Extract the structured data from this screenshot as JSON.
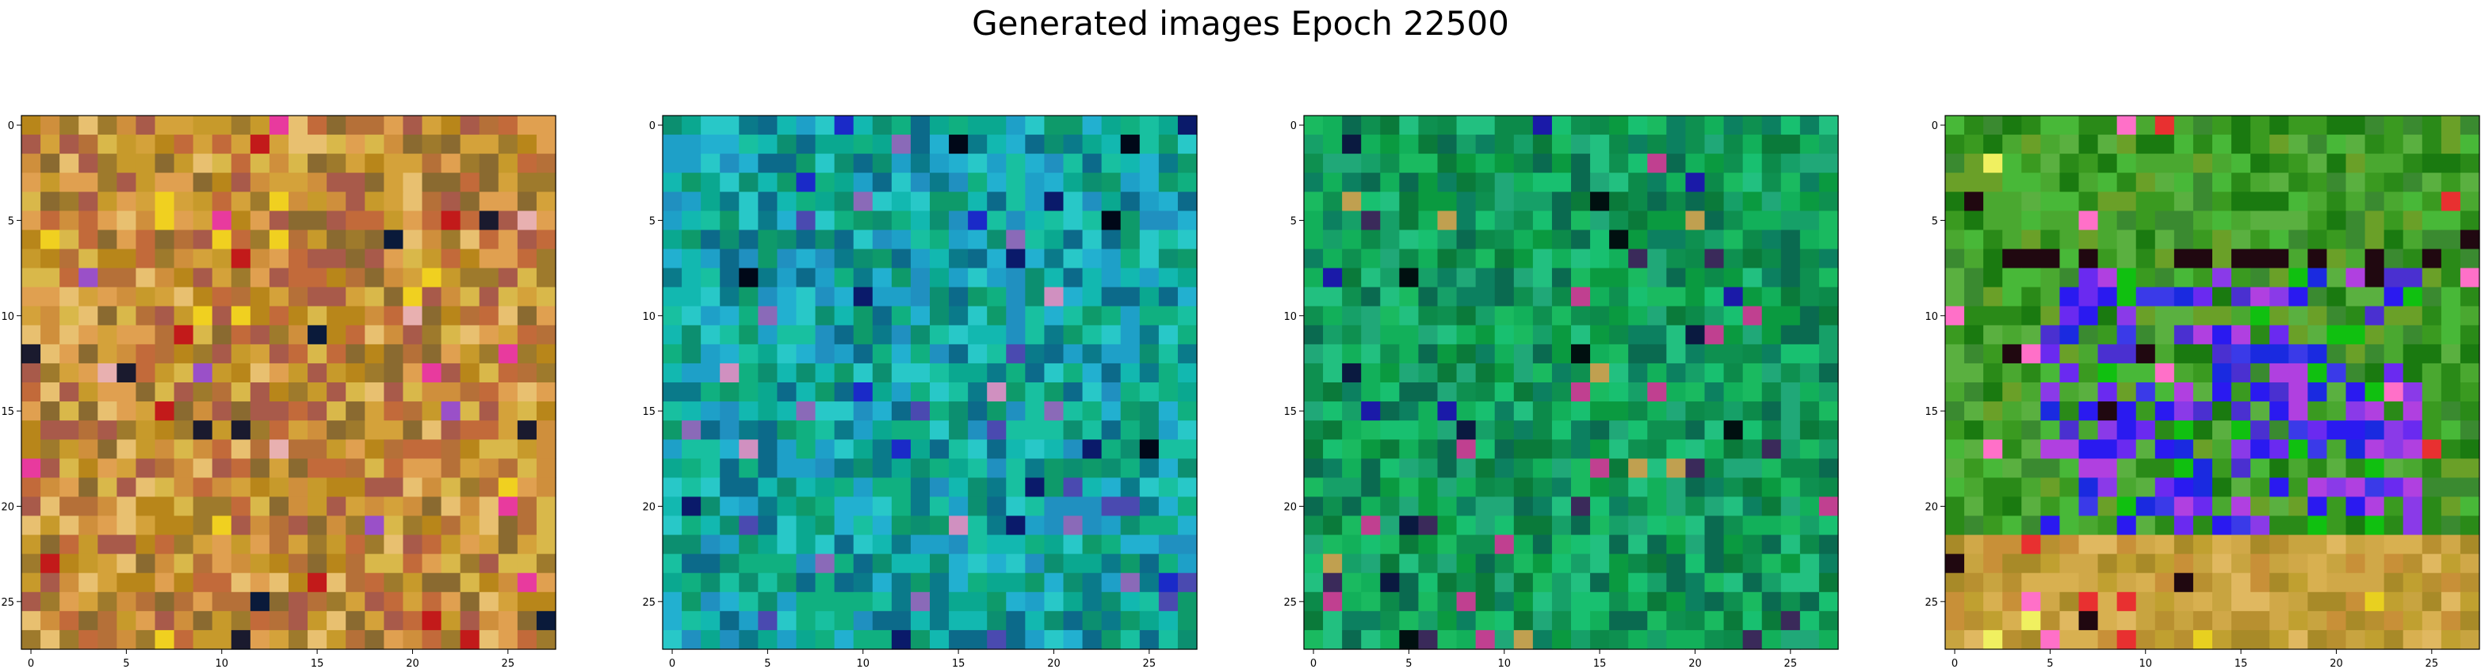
{
  "chart_data": {
    "type": "heatmap",
    "title": "Generated images Epoch 22500",
    "grid_size": [
      28,
      28
    ],
    "xlim": [
      -0.5,
      27.5
    ],
    "ylim": [
      27.5,
      -0.5
    ],
    "xticks": [
      0,
      5,
      10,
      15,
      20,
      25
    ],
    "yticks": [
      0,
      5,
      10,
      15,
      20,
      25
    ],
    "xticklabels": [
      "0",
      "5",
      "10",
      "15",
      "20",
      "25"
    ],
    "yticklabels": [
      "0",
      "5",
      "10",
      "15",
      "20",
      "25"
    ],
    "grid": false,
    "panels": [
      {
        "name": "image-1",
        "dominant_palette": "amber-orange",
        "colors": [
          "#b8861a",
          "#c79a2b",
          "#d4a23a",
          "#e0a050",
          "#c26a3a",
          "#9e7a2c",
          "#e8c070",
          "#a85a4a",
          "#d9b84a",
          "#b57038",
          "#cf8f3c",
          "#8a6a30"
        ],
        "accents": [
          "#1a1a2e",
          "#c21a1a",
          "#e83a9e",
          "#f0d020",
          "#e8b0b0",
          "#9a50c8",
          "#0a1a3a"
        ]
      },
      {
        "name": "image-2",
        "dominant_palette": "teal-cyan",
        "colors": [
          "#0aa890",
          "#12b8b0",
          "#1ea0c8",
          "#0c8f70",
          "#18c0a0",
          "#0a7a8a",
          "#28c8c8",
          "#0e9a6a",
          "#2090c0",
          "#10b080",
          "#0c6a8a",
          "#22b0d0"
        ],
        "accents": [
          "#0a1a6a",
          "#000818",
          "#4a4ab0",
          "#1a2ac8",
          "#d090c0",
          "#8a6ab8"
        ]
      },
      {
        "name": "image-3",
        "dominant_palette": "green",
        "colors": [
          "#0a9a40",
          "#12b05a",
          "#0c8a4a",
          "#18c070",
          "#0a7a3a",
          "#20a878",
          "#0e9050",
          "#1aba60",
          "#0a6a50",
          "#16a068",
          "#0c8060",
          "#22c080"
        ],
        "accents": [
          "#001010",
          "#0a1a40",
          "#1a1aa8",
          "#c0a050",
          "#c04090",
          "#3a2a5a"
        ]
      },
      {
        "name": "image-4",
        "dominant_palette": "green-purple-ochre",
        "colors": [
          "#3a9a20",
          "#4aa830",
          "#2a8a18",
          "#5ab040",
          "#1a7a10",
          "#6aa028",
          "#3a8a30",
          "#48b838"
        ],
        "center_colors": [
          "#6a2af0",
          "#2a1af0",
          "#8a3ae8",
          "#1a2ae0",
          "#b040e0",
          "#4a30d0",
          "#3a3ae8",
          "#10c010"
        ],
        "bottom_colors": [
          "#c0a030",
          "#d0a848",
          "#b89030",
          "#e0b860",
          "#c89038",
          "#a88a28",
          "#d8b050",
          "#c8a440"
        ],
        "accents": [
          "#e83030",
          "#f0f060",
          "#ff70c8",
          "#200810",
          "#e8d020"
        ]
      }
    ]
  }
}
